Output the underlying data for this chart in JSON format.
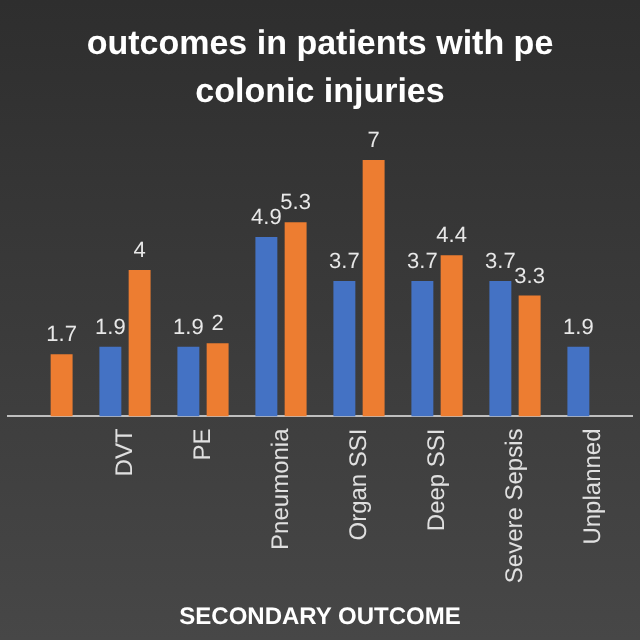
{
  "chart_data": {
    "type": "bar",
    "title": "outcomes in patients with pe colonic injuries",
    "xlabel": "SECONDARY OUTCOME",
    "categories": [
      null,
      "DVT",
      "PE",
      "Pneumonia",
      "Organ SSI",
      "Deep SSI",
      "Severe Sepsis",
      "Unplanned"
    ],
    "series": [
      {
        "color": "#4472c4",
        "values": [
          null,
          1.9,
          1.9,
          4.9,
          3.7,
          3.7,
          3.7,
          1.9
        ]
      },
      {
        "color": "#ed7d31",
        "values": [
          1.7,
          4,
          2,
          5.3,
          7,
          4.4,
          3.3,
          null
        ]
      }
    ],
    "data_labels": true,
    "grid": false,
    "legend": false
  }
}
